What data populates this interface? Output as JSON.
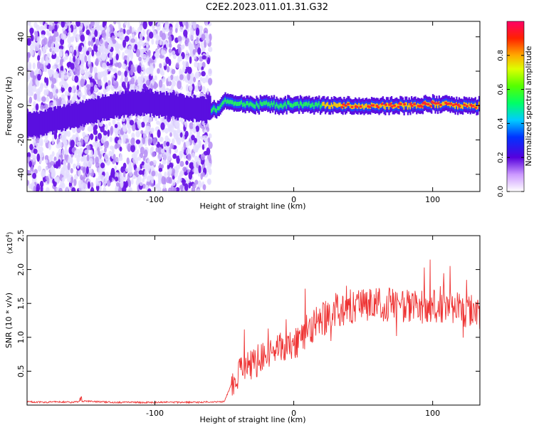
{
  "title": "C2E2.2023.011.01.31.G32",
  "colors": {
    "snr_line": "#ee3333",
    "axis": "#000000",
    "spectrogram_low": "#dcd0ff",
    "spectrogram_mid": "#7b22ee",
    "spectrogram_high": "#ff1a55"
  },
  "chart_data": [
    {
      "type": "heatmap",
      "title": "",
      "xlabel": "Height of straight line (km)",
      "ylabel": "Frequency (Hz)",
      "xlim": [
        -192,
        134
      ],
      "ylim": [
        -50,
        49
      ],
      "x_ticks": [
        -100,
        0,
        100
      ],
      "x_tick_labels": [
        "-100",
        "0",
        "100"
      ],
      "y_ticks": [
        -40,
        -20,
        0,
        20,
        40
      ],
      "y_tick_labels": [
        "-40",
        "-20",
        "0",
        "20",
        "40"
      ],
      "grid": false,
      "noise_region_x": [
        -192,
        -60
      ],
      "signal_band": {
        "description": "narrow band near 0 Hz from about -60 km to the end",
        "x": [
          -192,
          -170,
          -150,
          -130,
          -110,
          -90,
          -70,
          -55,
          -50,
          -40,
          -30,
          -20,
          -10,
          0,
          20,
          40,
          60,
          80,
          100,
          120,
          134
        ],
        "center_hz": [
          -12,
          -8,
          -4,
          0,
          2,
          0,
          -2,
          -2,
          2,
          1,
          0,
          1,
          0,
          1,
          0,
          0,
          0,
          0,
          1,
          0,
          0
        ]
      },
      "colorbar": {
        "label": "Normalized spectral amplitude",
        "range": [
          0.0,
          1.0
        ],
        "ticks": [
          0.0,
          0.2,
          0.4,
          0.6,
          0.8
        ],
        "tick_labels": [
          "0.0",
          "0.2",
          "0.4",
          "0.6",
          "0.8"
        ]
      }
    },
    {
      "type": "line",
      "title": "",
      "xlabel": "Height of straight line (km)",
      "ylabel": "SNR (10 * v/v)",
      "y_multiplier": "(x10",
      "y_multiplier_exp": "4",
      "y_multiplier_close": ")",
      "xlim": [
        -192,
        134
      ],
      "ylim": [
        0.0,
        2.5
      ],
      "x_ticks": [
        -100,
        0,
        100
      ],
      "x_tick_labels": [
        "-100",
        "0",
        "100"
      ],
      "y_ticks": [
        0.5,
        1.0,
        1.5,
        2.0,
        2.5
      ],
      "y_tick_labels": [
        "0.5",
        "1.0",
        "1.5",
        "2.0",
        "2.5"
      ],
      "grid": false,
      "series": [
        {
          "x": [
            -192,
            -180,
            -170,
            -160,
            -150,
            -140,
            -130,
            -120,
            -110,
            -100,
            -90,
            -80,
            -70,
            -60,
            -50,
            -45,
            -40,
            -35,
            -30,
            -25,
            -20,
            -15,
            -10,
            -5,
            0,
            5,
            10,
            20,
            30,
            40,
            50,
            60,
            70,
            80,
            90,
            100,
            110,
            120,
            134
          ],
          "values": [
            0.05,
            0.04,
            0.05,
            0.04,
            0.06,
            0.05,
            0.04,
            0.04,
            0.04,
            0.04,
            0.04,
            0.04,
            0.04,
            0.05,
            0.05,
            0.3,
            0.45,
            0.55,
            0.6,
            0.65,
            0.75,
            0.8,
            0.85,
            0.85,
            0.9,
            1.0,
            1.1,
            1.25,
            1.4,
            1.45,
            1.48,
            1.5,
            1.48,
            1.45,
            1.45,
            1.45,
            1.45,
            1.4,
            1.35
          ]
        }
      ]
    }
  ]
}
